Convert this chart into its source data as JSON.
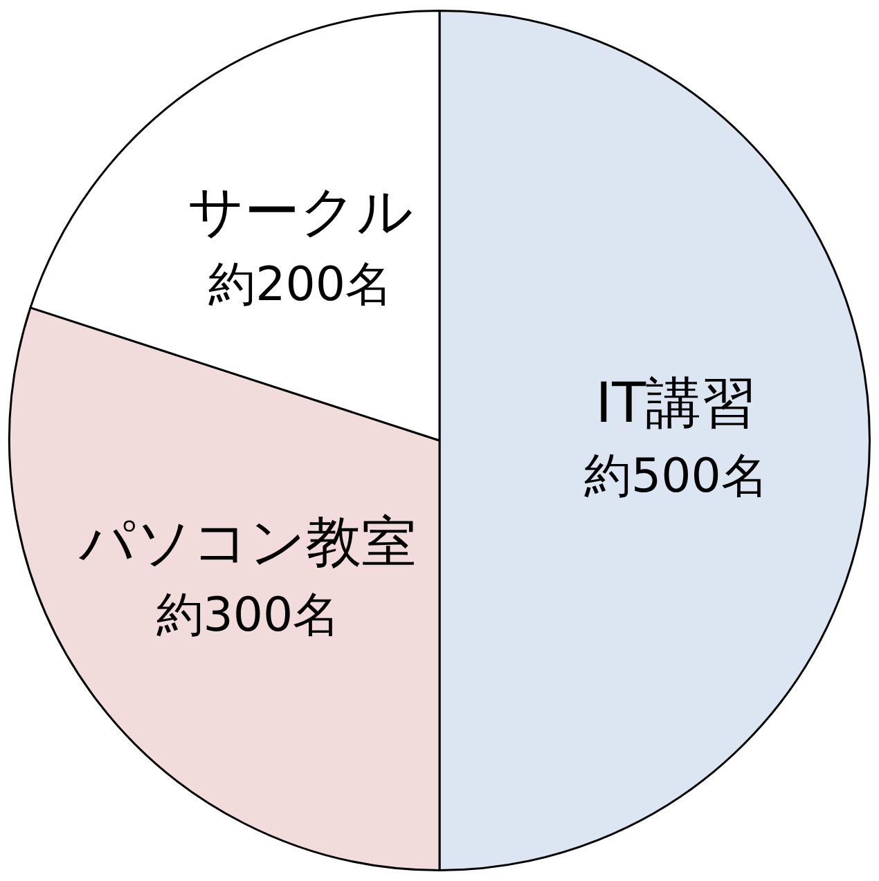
{
  "chart_data": {
    "type": "pie",
    "categories": [
      "IT講習",
      "パソコン教室",
      "サークル"
    ],
    "values": [
      500,
      300,
      200
    ],
    "value_labels": [
      "約500名",
      "約300名",
      "約200名"
    ],
    "colors": [
      "#dce6f2",
      "#f2dcdb",
      "#ffffff"
    ]
  }
}
